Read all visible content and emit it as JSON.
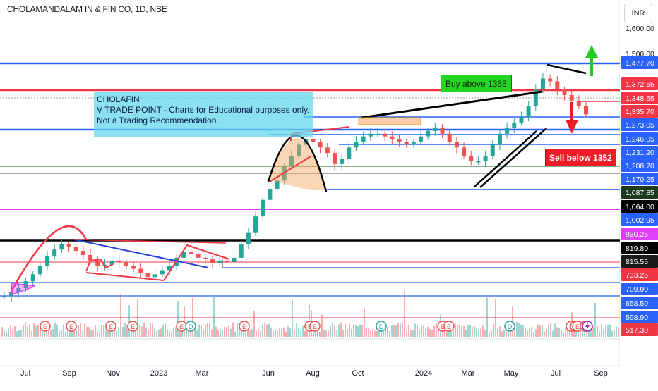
{
  "header": {
    "symbol_title": "CHOLAMANDALAM IN & FIN CO, 1D, NSE",
    "currency": "INR"
  },
  "annotations": {
    "note_lines": [
      "CHOLAFIN",
      "V TRADE POINT - Charts for Educational purposes only.",
      "Not a Trading Recommendation..."
    ],
    "buy_label": "Buy above 1365",
    "sell_label": "Sell below 1352"
  },
  "chart_data": {
    "type": "line",
    "instrument": "CHOLAMANDALAM IN & FIN CO",
    "interval": "1D",
    "exchange": "NSE",
    "currency": "INR",
    "series": [
      {
        "values": [
          690,
          705,
          720,
          745,
          770,
          800,
          835,
          860,
          880,
          870,
          855,
          840,
          820,
          800,
          805,
          820,
          815,
          800,
          790,
          775,
          760,
          770,
          785,
          800,
          830,
          850,
          845,
          830,
          825,
          810,
          820,
          815,
          830,
          880,
          920,
          980,
          1040,
          1080,
          1110,
          1160,
          1200,
          1240,
          1260,
          1250,
          1230,
          1210,
          1170,
          1190,
          1230,
          1250,
          1270,
          1280,
          1280,
          1270,
          1260,
          1250,
          1240,
          1250,
          1270,
          1290,
          1300,
          1280,
          1250,
          1230,
          1200,
          1180,
          1180,
          1200,
          1240,
          1280,
          1300,
          1320,
          1340,
          1380,
          1440,
          1480,
          1470,
          1440,
          1420,
          1400,
          1380,
          1350
        ]
      }
    ],
    "price_scale": {
      "ticks": [
        "1,600.00",
        "1,500.00"
      ],
      "labels": [
        {
          "value": "1,477.70",
          "bg": "#2962ff",
          "fg": "#ffffff"
        },
        {
          "value": "1,372.65",
          "bg": "#f23645",
          "fg": "#ffffff"
        },
        {
          "value": "1,348.65",
          "bg": "#f23645",
          "fg": "#ffffff"
        },
        {
          "value": "1,335.70",
          "bg": "#f23645",
          "fg": "#ffffff"
        },
        {
          "value": "1,273.05",
          "bg": "#2962ff",
          "fg": "#ffffff"
        },
        {
          "value": "1,246.05",
          "bg": "#2962ff",
          "fg": "#ffffff"
        },
        {
          "value": "1,231.20",
          "bg": "#2962ff",
          "fg": "#ffffff"
        },
        {
          "value": "1,208.70",
          "bg": "#2962ff",
          "fg": "#ffffff"
        },
        {
          "value": "1,170.25",
          "bg": "#2962ff",
          "fg": "#ffffff"
        },
        {
          "value": "1,087.85",
          "bg": "#1e3a1e",
          "fg": "#ffffff"
        },
        {
          "value": "1,064.00",
          "bg": "#000000",
          "fg": "#ffffff"
        },
        {
          "value": "1,002.95",
          "bg": "#2962ff",
          "fg": "#ffffff"
        },
        {
          "value": "930.25",
          "bg": "#e040fb",
          "fg": "#ffffff"
        },
        {
          "value": "819.80",
          "bg": "#000000",
          "fg": "#ffffff"
        },
        {
          "value": "815.55",
          "bg": "#1a1a1a",
          "fg": "#ffffff"
        },
        {
          "value": "733.25",
          "bg": "#f23645",
          "fg": "#ffffff"
        },
        {
          "value": "709.90",
          "bg": "#2962ff",
          "fg": "#ffffff"
        },
        {
          "value": "658.50",
          "bg": "#2962ff",
          "fg": "#ffffff"
        },
        {
          "value": "598.90",
          "bg": "#2962ff",
          "fg": "#ffffff"
        },
        {
          "value": "517.30",
          "bg": "#f23645",
          "fg": "#ffffff"
        }
      ]
    },
    "time_axis": [
      "Jul",
      "Sep",
      "Nov",
      "2023",
      "Mar",
      "Jun",
      "Aug",
      "Oct",
      "2024",
      "Mar",
      "May",
      "Jul",
      "Sep"
    ],
    "event_markers": [
      "E",
      "E",
      "E",
      "E",
      "E",
      "D",
      "E",
      "E",
      "E",
      "D",
      "E",
      "E",
      "D",
      "E",
      "E",
      "E",
      "E"
    ],
    "colors": {
      "up": "#26a69a",
      "down": "#ef5350",
      "support_line": "#2962ff",
      "resistance_line": "#f23645",
      "highlight_line": "#e040fb"
    }
  }
}
